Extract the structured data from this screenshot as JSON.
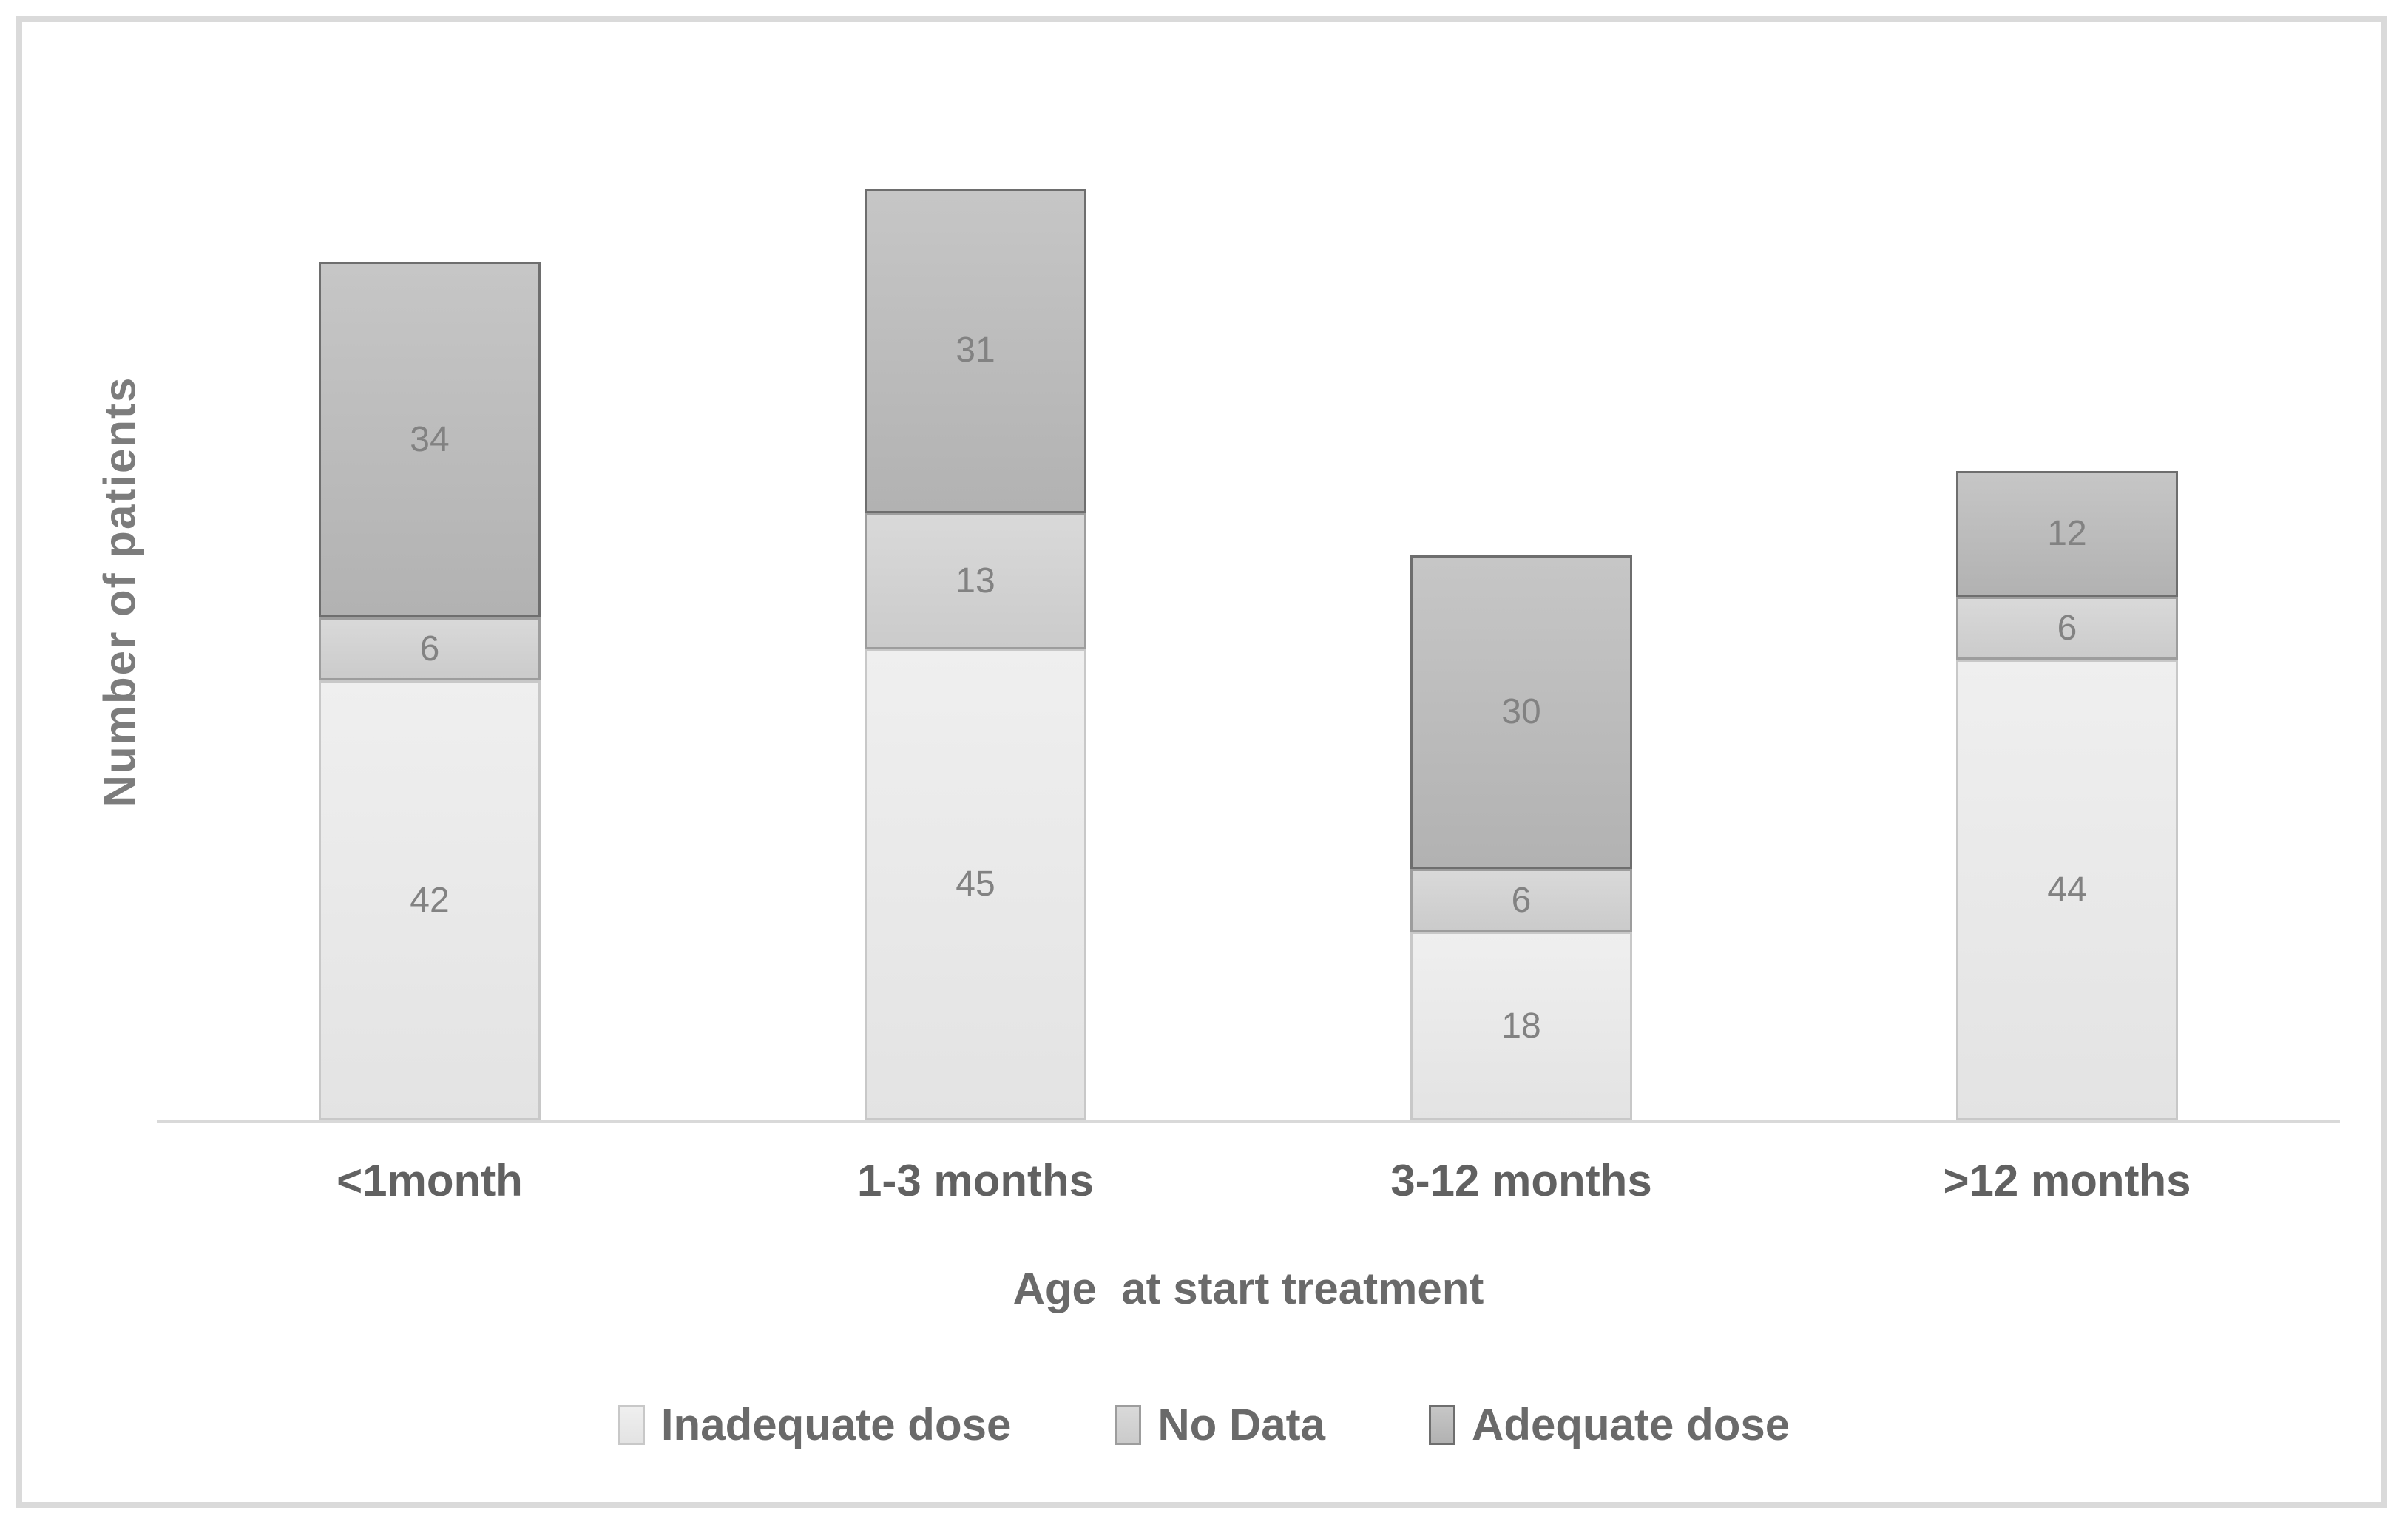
{
  "figure": {
    "y_axis_title": "Number of patients",
    "x_axis_title": "Age  at start treatment"
  },
  "chart_data": {
    "type": "bar",
    "stacked": true,
    "title": "",
    "xlabel": "Age  at start treatment",
    "ylabel": "Number of patients",
    "categories": [
      "<1month",
      "1-3 months",
      "3-12 months",
      ">12 months"
    ],
    "series": [
      {
        "name": "Inadequate dose",
        "values": [
          42,
          45,
          18,
          44
        ],
        "fill_top": "#efefef",
        "fill_bottom": "#e3e3e3",
        "border": "#c8c8c8"
      },
      {
        "name": "No Data",
        "values": [
          6,
          13,
          6,
          6
        ],
        "fill_top": "#d9d9d9",
        "fill_bottom": "#cbcbcb",
        "border": "#9d9d9d"
      },
      {
        "name": "Adequate dose",
        "values": [
          34,
          31,
          30,
          12
        ],
        "fill_top": "#c6c6c6",
        "fill_bottom": "#b2b2b2",
        "border": "#6e6e6e"
      }
    ],
    "totals": [
      82,
      89,
      54,
      62
    ],
    "ylim": [
      0,
      89
    ],
    "grid": false,
    "y_ticks_visible": false,
    "data_labels": true,
    "data_label_color": "#828282",
    "axis_line_color": "#d9d9d9",
    "tick_label_color": "#616161",
    "frame_border_color": "#dadada",
    "legend_position": "bottom"
  }
}
